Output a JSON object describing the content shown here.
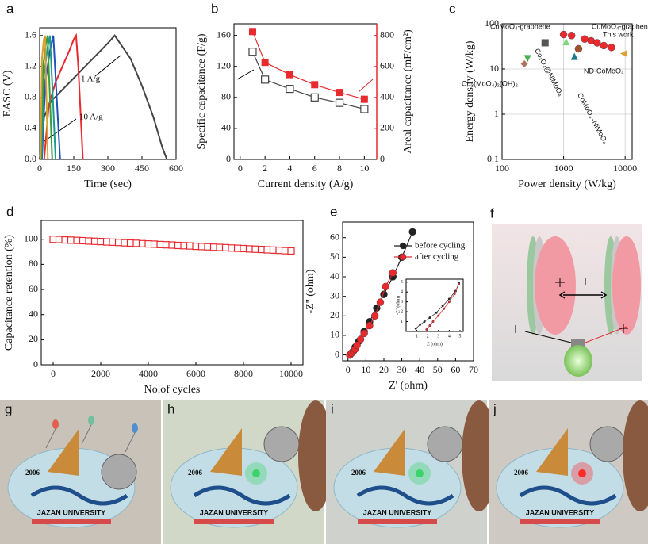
{
  "panel_labels": [
    "a",
    "b",
    "c",
    "d",
    "e",
    "f"
  ],
  "chart_data": [
    {
      "type": "line",
      "xlabel": "Time (sec)",
      "ylabel": "EASC (V)",
      "annotations": [
        "1 A/g",
        "10 A/g"
      ],
      "xlim": [
        0,
        600
      ],
      "ylim": [
        0,
        1.7
      ],
      "xticks": [
        0,
        150,
        300,
        450,
        600
      ],
      "yticks": [
        {
          "value": 0,
          "label": "0.0"
        },
        0.4,
        0.8,
        1.2,
        1.6
      ],
      "series": [
        {
          "color": "#444444",
          "x": [
            0,
            20,
            50,
            100,
            150,
            200,
            250,
            300,
            330,
            400,
            450,
            500,
            540,
            560
          ],
          "values": [
            0,
            0.55,
            0.75,
            0.9,
            1.05,
            1.2,
            1.35,
            1.5,
            1.6,
            1.3,
            0.95,
            0.55,
            0.15,
            0
          ]
        },
        {
          "color": "#e8292e",
          "x": [
            20,
            40,
            70,
            100,
            130,
            150,
            160,
            170,
            180,
            190
          ],
          "values": [
            0,
            0.7,
            1.0,
            1.2,
            1.4,
            1.55,
            1.6,
            1.2,
            0.6,
            0
          ]
        },
        {
          "color": "#2050c0",
          "x": [
            10,
            25,
            45,
            60,
            75,
            90
          ],
          "values": [
            0,
            1.0,
            1.4,
            1.6,
            0.8,
            0
          ]
        },
        {
          "color": "#1a9a8c",
          "x": [
            8,
            20,
            35,
            45,
            58,
            70
          ],
          "values": [
            0,
            1.1,
            1.45,
            1.6,
            0.8,
            0
          ]
        },
        {
          "color": "#3a9a3a",
          "x": [
            6,
            15,
            28,
            35,
            45,
            55
          ],
          "values": [
            0,
            1.2,
            1.5,
            1.6,
            0.8,
            0
          ]
        },
        {
          "color": "#d4a030",
          "x": [
            4,
            10,
            18,
            24,
            30,
            36
          ],
          "values": [
            0,
            1.3,
            1.55,
            1.6,
            0.8,
            0
          ]
        }
      ]
    },
    {
      "type": "line",
      "xlabel": "Current density (A/g)",
      "ylabel": "Specific capacitance (F/g)",
      "y2label": "Areal capacitance (mF/cm²)",
      "xlim": [
        -0.5,
        11
      ],
      "ylim": [
        0,
        175
      ],
      "y2lim": [
        0,
        875
      ],
      "xticks": [
        0,
        2,
        4,
        6,
        8,
        10
      ],
      "yticks": [
        0,
        40,
        80,
        120,
        160
      ],
      "y2ticks": [
        0,
        200,
        400,
        600,
        800
      ],
      "series": [
        {
          "color": "#444444",
          "marker": "hollow-square",
          "x": [
            1,
            2,
            4,
            6,
            8,
            10
          ],
          "values": [
            139,
            103,
            91,
            80,
            73,
            65
          ]
        },
        {
          "color": "#e8292e",
          "marker": "square",
          "axis": "y2",
          "x": [
            1,
            2,
            4,
            6,
            8,
            10
          ],
          "values": [
            825,
            626,
            547,
            482,
            432,
            388
          ]
        }
      ]
    },
    {
      "type": "scatter",
      "xlabel": "Power density (W/kg)",
      "ylabel": "Energy density (W/kg)",
      "xscale": "log",
      "yscale": "log",
      "grid": true,
      "xlim": [
        100,
        13000
      ],
      "ylim": [
        0.1,
        100
      ],
      "xticks": [
        100,
        1000,
        10000
      ],
      "yticks": [
        0.1,
        1,
        10,
        100
      ],
      "series": [
        {
          "name": "This work",
          "color": "#e8292e",
          "marker": "circle",
          "x": [
            1000,
            1350,
            2200,
            2800,
            3500,
            4500,
            6000
          ],
          "values": [
            58,
            55,
            46,
            42,
            38,
            33,
            30
          ]
        },
        {
          "name": "CoMoO₄-graphene",
          "color": "#4caf50",
          "marker": "triangle-down",
          "x": [
            260
          ],
          "values": [
            17
          ]
        },
        {
          "name": "Cu₃(MoO₄)₂(OH)₂",
          "color": "#b07060",
          "marker": "diamond",
          "x": [
            230
          ],
          "values": [
            13
          ]
        },
        {
          "name": "Co₃O₄@NiMoO₄",
          "color": "#555555",
          "marker": "square",
          "x": [
            500
          ],
          "values": [
            38
          ]
        },
        {
          "name": "CuMoO₄-graphene",
          "color": "#7ed67e",
          "marker": "triangle",
          "x": [
            1100
          ],
          "values": [
            40
          ]
        },
        {
          "name": "ND-CoMoO₄",
          "color": "#a0522d",
          "marker": "circle",
          "x": [
            1750
          ],
          "values": [
            28
          ]
        },
        {
          "name": "CoMoO₄–NiMoO₄",
          "color": "#1a7a8c",
          "marker": "triangle",
          "x": [
            1500
          ],
          "values": [
            19
          ]
        },
        {
          "color": "#e0a030",
          "marker": "triangle-left",
          "x": [
            9500
          ],
          "values": [
            22
          ]
        }
      ]
    },
    {
      "type": "scatter",
      "xlabel": "No.of cycles",
      "ylabel": "Capacitance retention (%)",
      "xlim": [
        -500,
        10500
      ],
      "ylim": [
        0,
        115
      ],
      "xticks": [
        0,
        2000,
        4000,
        6000,
        8000,
        10000
      ],
      "yticks": [
        0,
        20,
        40,
        60,
        80,
        100
      ],
      "series": [
        {
          "color": "#e8292e",
          "marker": "hollow-square",
          "x": [
            0,
            250,
            500,
            750,
            1000,
            1250,
            1500,
            1750,
            2000,
            2250,
            2500,
            2750,
            3000,
            3250,
            3500,
            3750,
            4000,
            4250,
            4500,
            4750,
            5000,
            5250,
            5500,
            5750,
            6000,
            6250,
            6500,
            6750,
            7000,
            7250,
            7500,
            7750,
            8000,
            8250,
            8500,
            8750,
            9000,
            9250,
            9500,
            9750,
            10000
          ],
          "values": [
            100,
            99.8,
            99.5,
            99.3,
            99.1,
            98.9,
            98.6,
            98.4,
            98.2,
            97.9,
            97.7,
            97.5,
            97.2,
            97.0,
            96.8,
            96.5,
            96.3,
            96.1,
            95.8,
            95.6,
            95.4,
            95.1,
            94.9,
            94.7,
            94.4,
            94.2,
            94.0,
            93.7,
            93.5,
            93.3,
            93.0,
            92.8,
            92.6,
            92.3,
            92.1,
            91.9,
            91.6,
            91.4,
            91.2,
            90.9,
            90.7
          ]
        }
      ]
    },
    {
      "type": "line",
      "xlabel": "Z' (ohm)",
      "ylabel": "-Z'' (ohm)",
      "legend": "upper right",
      "xlim": [
        -3,
        70
      ],
      "ylim": [
        -3,
        68
      ],
      "xticks": [
        0,
        10,
        20,
        30,
        40,
        50,
        60,
        70
      ],
      "yticks": [
        0,
        10,
        20,
        30,
        40,
        50,
        60
      ],
      "series": [
        {
          "name": "before cycling",
          "color": "#222222",
          "marker": "circle",
          "x": [
            1,
            2,
            3,
            4,
            6,
            9,
            12,
            16,
            20,
            25,
            30,
            36
          ],
          "values": [
            0,
            1,
            2,
            4,
            7,
            12,
            17,
            24,
            31,
            40,
            50,
            63
          ]
        },
        {
          "name": "after cycling",
          "color": "#e8292e",
          "marker": "circle",
          "x": [
            1,
            2,
            3,
            4,
            5,
            7,
            9,
            12,
            15,
            18,
            21,
            25
          ],
          "values": [
            0,
            1,
            2,
            3,
            5,
            8,
            11,
            15,
            20,
            27,
            35,
            42
          ]
        }
      ]
    },
    {
      "type": "line",
      "xlabel": "Z (ohm)",
      "ylabel": "-Z'' (ohm)",
      "xlim": [
        0,
        5.3
      ],
      "ylim": [
        0,
        5.3
      ],
      "xticks": [
        1,
        2,
        3,
        4,
        5
      ],
      "yticks": [
        1,
        2,
        3,
        4,
        5
      ],
      "series": [
        {
          "color": "#222222",
          "marker": "circle",
          "x": [
            0.9,
            1.3,
            1.7,
            2.2,
            2.8,
            3.4,
            4,
            4.6,
            4.9
          ],
          "values": [
            0.3,
            0.7,
            1,
            1.4,
            1.9,
            2.6,
            3.3,
            4.1,
            4.9
          ]
        },
        {
          "color": "#e8292e",
          "marker": "circle",
          "x": [
            1.9,
            2.2,
            2.5,
            3,
            3.5,
            4,
            4.5,
            4.9
          ],
          "values": [
            0.2,
            0.6,
            1,
            1.6,
            2.3,
            3,
            3.8,
            4.8
          ]
        }
      ]
    }
  ],
  "photos": [
    {
      "label": "g",
      "year": "2006",
      "name": "JAZAN UNIVERSITY"
    },
    {
      "label": "h",
      "year": "2006",
      "name": "JAZAN UNIVERSITY"
    },
    {
      "label": "i",
      "year": "2006",
      "name": "JAZAN UNIVERSITY"
    },
    {
      "label": "j",
      "year": "2006",
      "name": "JAZAN UNIVERSITY"
    }
  ]
}
